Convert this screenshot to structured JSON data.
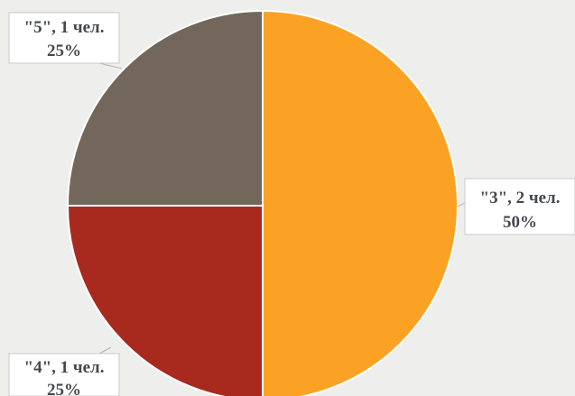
{
  "chart_data": {
    "type": "pie",
    "start_angle_deg": 0,
    "direction": "clockwise",
    "legend": "none",
    "slices": [
      {
        "category": "\"3\"",
        "count_label": "\"3\", 2 чел.",
        "value": 2,
        "percent_label": "50%",
        "color": "#fba124"
      },
      {
        "category": "\"4\"",
        "count_label": "\"4\", 1 чел.",
        "value": 1,
        "percent_label": "25%",
        "color": "#a8291e"
      },
      {
        "category": "\"5\"",
        "count_label": "\"5\", 1 чел.",
        "value": 1,
        "percent_label": "25%",
        "color": "#72675a"
      }
    ]
  }
}
